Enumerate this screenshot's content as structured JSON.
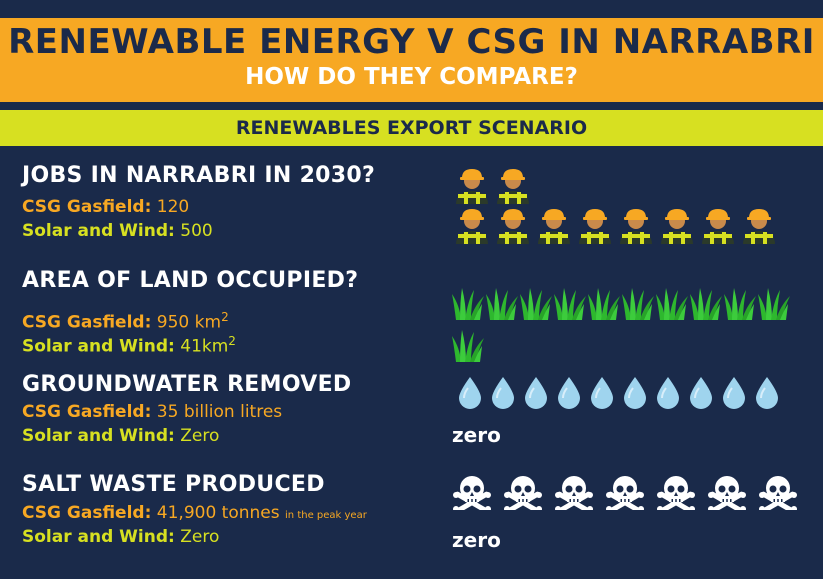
{
  "header": {
    "title": "RENEWABLE ENERGY V CSG IN NARRABRI",
    "subtitle": "HOW DO THEY COMPARE?"
  },
  "scenario": "RENEWABLES EXPORT SCENARIO",
  "sections": {
    "jobs": {
      "question": "JOBS IN NARRABRI IN 2030?",
      "csg_label": "CSG Gasfield:",
      "csg_value": "120",
      "sw_label": "Solar and Wind:",
      "sw_value": "500"
    },
    "land": {
      "question": "AREA OF LAND OCCUPIED?",
      "csg_label": "CSG Gasfield:",
      "csg_value": "950 km",
      "csg_sup": "2",
      "sw_label": "Solar and Wind:",
      "sw_value": "41km",
      "sw_sup": "2"
    },
    "water": {
      "question": "GROUNDWATER REMOVED",
      "csg_label": "CSG Gasfield:",
      "csg_value": "35 billion litres",
      "sw_label": "Solar and Wind:",
      "sw_value": "Zero",
      "zero_label": "zero"
    },
    "salt": {
      "question": "SALT WASTE PRODUCED",
      "csg_label": "CSG Gasfield:",
      "csg_value": "41,900 tonnes",
      "csg_note": "in the peak year",
      "sw_label": "Solar and Wind:",
      "sw_value": "Zero",
      "zero_label": "zero"
    }
  },
  "icons": {
    "worker": "worker-icon",
    "grass": "grass-icon",
    "water_drop": "water-drop-icon",
    "skull": "skull-crossbones-icon"
  },
  "colors": {
    "background": "#1a2a4a",
    "orange": "#f7a823",
    "lime": "#d7e021",
    "grass": "#2eb82e",
    "water": "#9fd4ee"
  }
}
